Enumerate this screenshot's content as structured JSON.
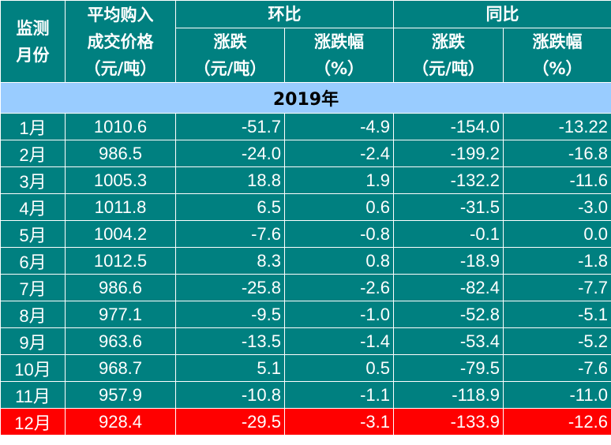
{
  "header": {
    "month": [
      "监测",
      "月份"
    ],
    "price": [
      "平均购入",
      "成交价格",
      "（元/吨）"
    ],
    "mom": "环比",
    "yoy": "同比",
    "change": [
      "涨跌",
      "（元/吨）"
    ],
    "change_pct": [
      "涨跌幅",
      "（%）"
    ]
  },
  "year_label": "2019年",
  "rows": [
    {
      "month": "1月",
      "price": "1010.6",
      "mom_change": "-51.7",
      "mom_pct": "-4.9",
      "yoy_change": "-154.0",
      "yoy_pct": "-13.22"
    },
    {
      "month": "2月",
      "price": "986.5",
      "mom_change": "-24.0",
      "mom_pct": "-2.4",
      "yoy_change": "-199.2",
      "yoy_pct": "-16.8"
    },
    {
      "month": "3月",
      "price": "1005.3",
      "mom_change": "18.8",
      "mom_pct": "1.9",
      "yoy_change": "-132.2",
      "yoy_pct": "-11.6"
    },
    {
      "month": "4月",
      "price": "1011.8",
      "mom_change": "6.5",
      "mom_pct": "0.6",
      "yoy_change": "-31.5",
      "yoy_pct": "-3.0"
    },
    {
      "month": "5月",
      "price": "1004.2",
      "mom_change": "-7.6",
      "mom_pct": "-0.8",
      "yoy_change": "-0.1",
      "yoy_pct": "0.0"
    },
    {
      "month": "6月",
      "price": "1012.5",
      "mom_change": "8.3",
      "mom_pct": "0.8",
      "yoy_change": "-18.9",
      "yoy_pct": "-1.8"
    },
    {
      "month": "7月",
      "price": "986.6",
      "mom_change": "-25.8",
      "mom_pct": "-2.6",
      "yoy_change": "-82.4",
      "yoy_pct": "-7.7"
    },
    {
      "month": "8月",
      "price": "977.1",
      "mom_change": "-9.5",
      "mom_pct": "-1.0",
      "yoy_change": "-52.8",
      "yoy_pct": "-5.1"
    },
    {
      "month": "9月",
      "price": "963.6",
      "mom_change": "-13.5",
      "mom_pct": "-1.4",
      "yoy_change": "-53.4",
      "yoy_pct": "-5.2"
    },
    {
      "month": "10月",
      "price": "968.7",
      "mom_change": "5.1",
      "mom_pct": "0.5",
      "yoy_change": "-79.5",
      "yoy_pct": "-7.6"
    },
    {
      "month": "11月",
      "price": "957.9",
      "mom_change": "-10.8",
      "mom_pct": "-1.1",
      "yoy_change": "-118.9",
      "yoy_pct": "-11.0"
    },
    {
      "month": "12月",
      "price": "928.4",
      "mom_change": "-29.5",
      "mom_pct": "-3.1",
      "yoy_change": "-133.9",
      "yoy_pct": "-12.6"
    }
  ],
  "highlight_row_index": 11,
  "colors": {
    "header_bg": "#008080",
    "year_bg": "#99ccff",
    "highlight_bg": "#ff0000",
    "text": "#ffffff"
  }
}
